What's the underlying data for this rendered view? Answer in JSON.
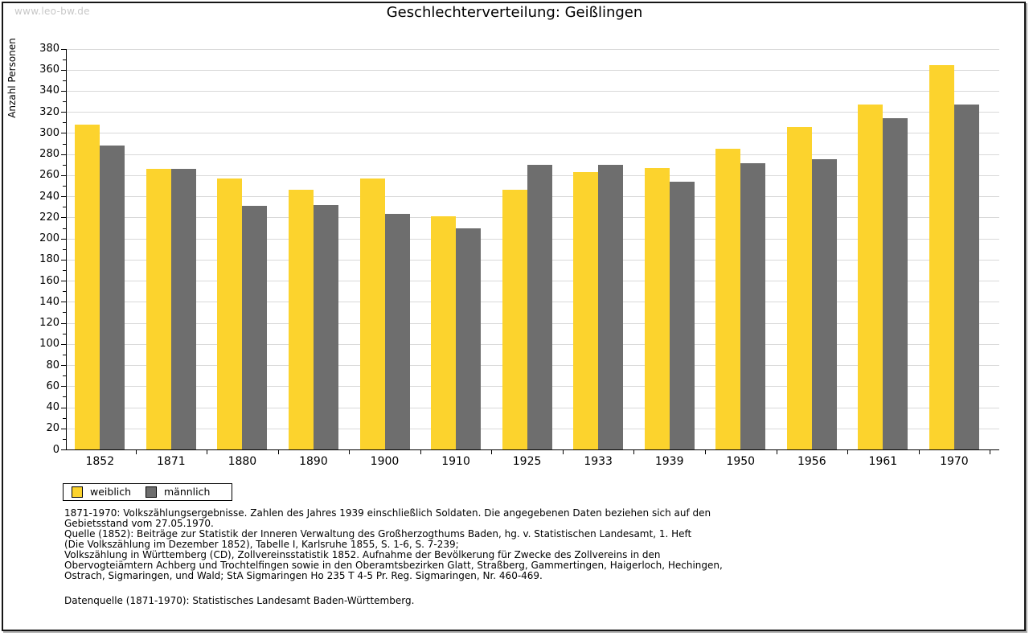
{
  "watermark": "www.leo-bw.de",
  "title": "Geschlechterverteilung: Geißlingen",
  "chart_data": {
    "type": "bar",
    "title": "Geschlechterverteilung: Geißlingen",
    "xlabel": "",
    "ylabel": "Anzahl Personen",
    "ylim": [
      0,
      380
    ],
    "ytick_step": 20,
    "yminor_step": 10,
    "grid": true,
    "grid_color": "#d9d9d9",
    "axis_color": "#000000",
    "legend_position": "bottom-left",
    "categories": [
      "1852",
      "1871",
      "1880",
      "1890",
      "1900",
      "1910",
      "1925",
      "1933",
      "1939",
      "1950",
      "1956",
      "1961",
      "1970"
    ],
    "series": [
      {
        "name": "weiblich",
        "color": "#fcd32d",
        "values": [
          308,
          266,
          257,
          246,
          257,
          221,
          246,
          263,
          267,
          285,
          306,
          327,
          364
        ]
      },
      {
        "name": "männlich",
        "color": "#6e6e6e",
        "values": [
          288,
          266,
          231,
          232,
          223,
          210,
          270,
          270,
          254,
          271,
          275,
          314,
          327
        ]
      }
    ]
  },
  "footer": {
    "notes": [
      "1871-1970: Volkszählungsergebnisse. Zahlen des Jahres 1939 einschließlich Soldaten. Die angegebenen Daten beziehen sich auf den",
      "Gebietsstand vom 27.05.1970.",
      "Quelle (1852): Beiträge zur Statistik der Inneren Verwaltung des Großherzogthums Baden, hg. v. Statistischen Landesamt, 1. Heft",
      "(Die Volkszählung im Dezember 1852), Tabelle I, Karlsruhe 1855, S. 1-6, S. 7-239;",
      "Volkszählung in Württemberg (CD), Zollvereinsstatistik 1852. Aufnahme der Bevölkerung für Zwecke des Zollvereins in den",
      "Obervogteiämtern Achberg und Trochtelfingen sowie in den Oberamtsbezirken Glatt, Straßberg, Gammertingen, Haigerloch, Hechingen,",
      "Ostrach, Sigmaringen, und Wald; StA Sigmaringen Ho 235 T 4-5 Pr. Reg. Sigmaringen, Nr. 460-469."
    ],
    "datasource": "Datenquelle (1871-1970): Statistisches Landesamt Baden-Württemberg."
  }
}
